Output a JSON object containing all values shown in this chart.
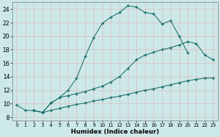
{
  "xlabel": "Humidex (Indice chaleur)",
  "bg_color": "#cce8e8",
  "grid_color": "#aacccc",
  "line_color": "#1a6e6a",
  "xlim": [
    -0.5,
    23.5
  ],
  "ylim": [
    7.5,
    25.0
  ],
  "xticks": [
    0,
    1,
    2,
    3,
    4,
    5,
    6,
    7,
    8,
    9,
    10,
    11,
    12,
    13,
    14,
    15,
    16,
    17,
    18,
    19,
    20,
    21,
    22,
    23
  ],
  "yticks": [
    8,
    10,
    12,
    14,
    16,
    18,
    20,
    22,
    24
  ],
  "curve1_x": [
    0,
    1,
    2,
    3,
    4,
    5,
    6,
    7,
    8,
    9,
    10,
    11,
    12,
    13,
    14,
    15,
    16,
    17,
    18,
    19,
    20
  ],
  "curve1_y": [
    9.8,
    9.0,
    9.0,
    8.7,
    10.1,
    10.9,
    12.0,
    13.8,
    17.0,
    19.8,
    21.9,
    22.8,
    23.5,
    24.5,
    24.3,
    23.5,
    23.3,
    21.8,
    22.3,
    20.0,
    17.5
  ],
  "curve2_x": [
    2,
    3,
    4,
    5,
    6,
    7,
    8,
    9,
    10,
    11,
    12,
    13,
    14,
    15,
    16,
    17,
    18,
    19,
    20,
    21,
    22,
    23
  ],
  "curve2_y": [
    9.0,
    8.7,
    10.1,
    10.9,
    11.2,
    11.5,
    11.8,
    12.2,
    12.6,
    13.2,
    14.0,
    15.2,
    16.5,
    17.2,
    17.6,
    18.0,
    18.3,
    18.7,
    19.2,
    18.9,
    17.2,
    16.5
  ],
  "curve3_x": [
    2,
    3,
    4,
    5,
    6,
    7,
    8,
    9,
    10,
    11,
    12,
    13,
    14,
    15,
    16,
    17,
    18,
    19,
    20,
    21,
    22,
    23
  ],
  "curve3_y": [
    9.0,
    8.7,
    9.0,
    9.3,
    9.6,
    9.9,
    10.1,
    10.4,
    10.6,
    10.9,
    11.1,
    11.4,
    11.7,
    12.0,
    12.2,
    12.5,
    12.8,
    13.1,
    13.4,
    13.6,
    13.8,
    13.8
  ]
}
